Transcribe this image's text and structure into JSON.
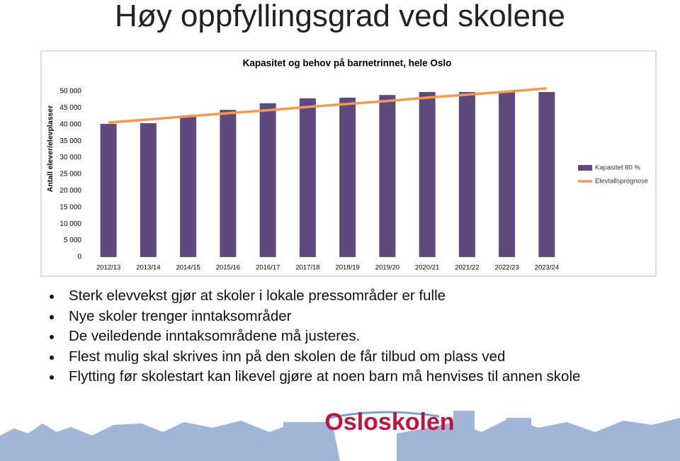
{
  "title": "Høy oppfyllingsgrad ved skolene",
  "chart_data": {
    "type": "bar",
    "title": "Kapasitet og behov på barnetrinnet, hele Oslo",
    "y_label": "Antall elever/elevplasser",
    "categories": [
      "2012/13",
      "2013/14",
      "2014/15",
      "2015/16",
      "2016/17",
      "2017/18",
      "2018/19",
      "2019/20",
      "2020/21",
      "2021/22",
      "2022/23",
      "2023/24"
    ],
    "series": [
      {
        "name": "Kapasitet 80 %",
        "type": "bar",
        "color": "#5f4a7d",
        "values": [
          40200,
          40400,
          42700,
          44400,
          46400,
          47900,
          48100,
          48900,
          49800,
          49800,
          49800,
          49800
        ]
      },
      {
        "name": "Elevtallsprognose",
        "type": "line",
        "color": "#f29a54",
        "values": [
          40600,
          41500,
          42500,
          43400,
          44300,
          45300,
          46200,
          47100,
          48100,
          49000,
          49900,
          50900
        ]
      }
    ],
    "ylim": [
      0,
      50000
    ],
    "yticks": [
      0,
      {
        "value": 5000,
        "label": "5 000"
      },
      {
        "value": 10000,
        "label": "10 000"
      },
      {
        "value": 15000,
        "label": "15 000"
      },
      {
        "value": 20000,
        "label": "20 000"
      },
      {
        "value": 25000,
        "label": "25 000"
      },
      {
        "value": 30000,
        "label": "30 000"
      },
      {
        "value": 35000,
        "label": "35 000"
      },
      {
        "value": 40000,
        "label": "40 000"
      },
      {
        "value": 45000,
        "label": "45 000"
      },
      {
        "value": 50000,
        "label": "50 000"
      }
    ],
    "legend": "right"
  },
  "bullets": [
    "Sterk elevvekst gjør at skoler i lokale pressområder er fulle",
    "Nye skoler trenger inntaksområder",
    "De veiledende inntaksområdene må justeres.",
    "Flest mulig skal skrives inn på den skolen de får tilbud om plass ved",
    "Flytting før skolestart kan likevel gjøre at noen barn må henvises til annen skole"
  ],
  "logo": "Osloskolen"
}
